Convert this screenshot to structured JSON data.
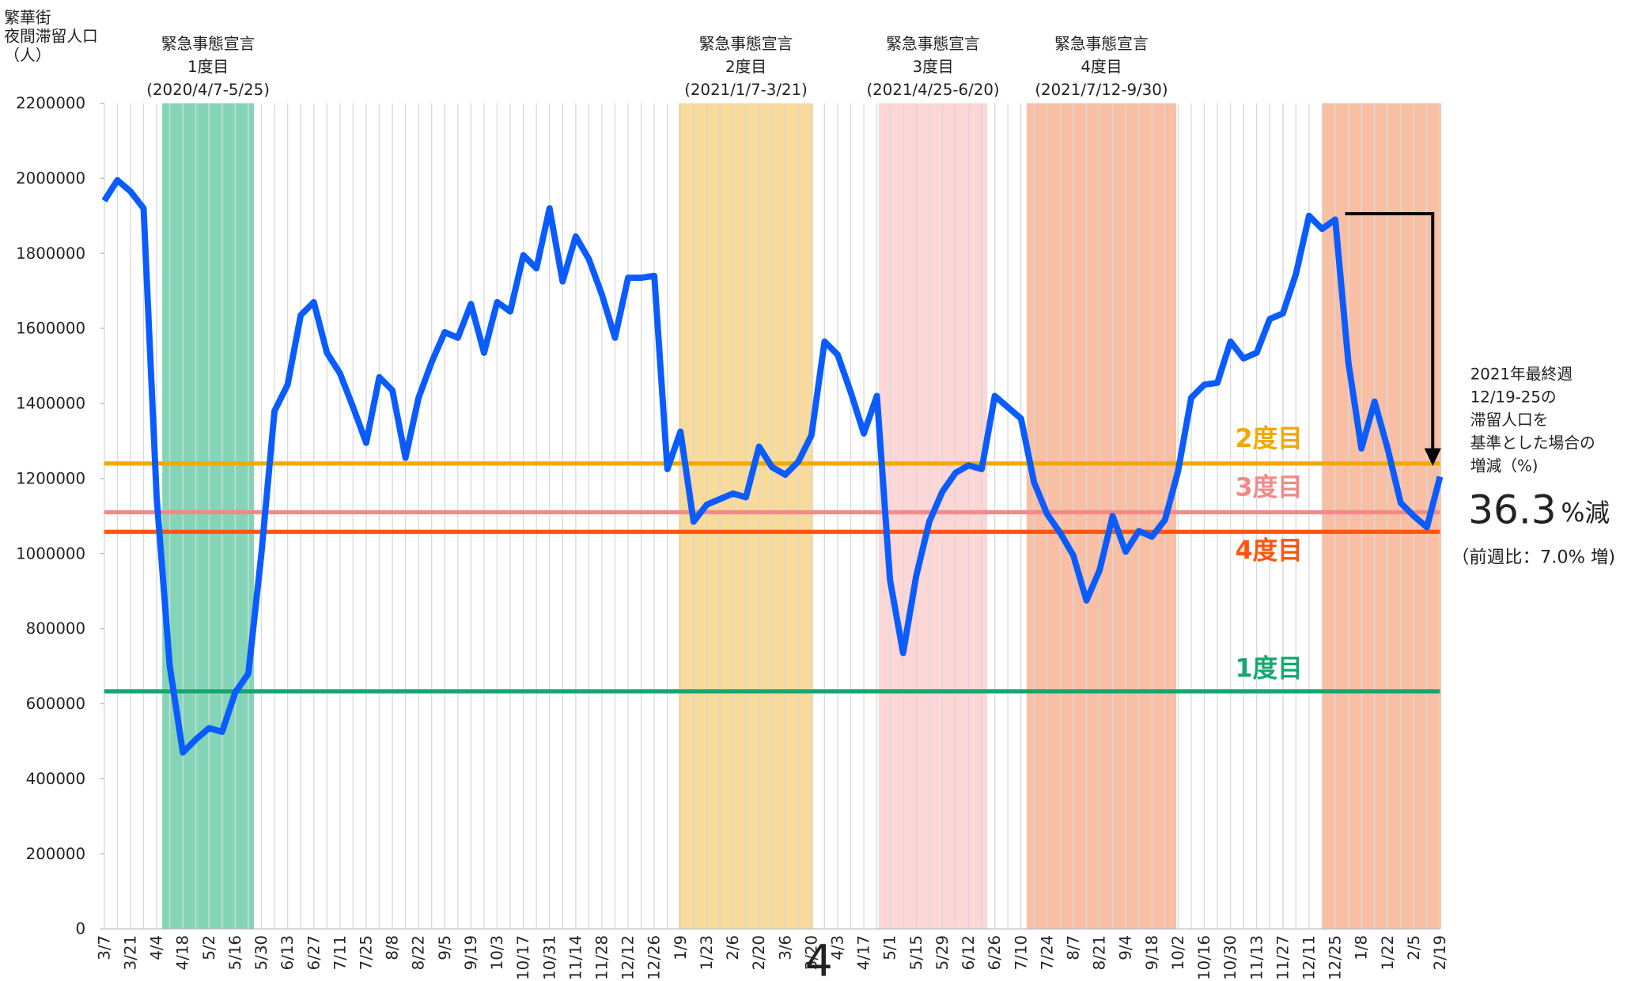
{
  "chart_data": {
    "type": "line",
    "y_axis_label": [
      "繁華街",
      "夜間滞留人口",
      "（人）"
    ],
    "categories": [
      "3/7",
      null,
      "3/21",
      null,
      "4/4",
      null,
      "4/18",
      null,
      "5/2",
      null,
      "5/16",
      null,
      "5/30",
      null,
      "6/13",
      null,
      "6/27",
      null,
      "7/11",
      null,
      "7/25",
      null,
      "8/8",
      null,
      "8/22",
      null,
      "9/5",
      null,
      "9/19",
      null,
      "10/3",
      null,
      "10/17",
      null,
      "10/31",
      null,
      "11/14",
      null,
      "11/28",
      null,
      "12/12",
      null,
      "12/26",
      null,
      "1/9",
      null,
      "1/23",
      null,
      "2/6",
      null,
      "2/20",
      null,
      "3/6",
      null,
      "3/20",
      null,
      "4/3",
      null,
      "4/17",
      null,
      "5/1",
      null,
      "5/15",
      null,
      "5/29",
      null,
      "6/12",
      null,
      "6/26",
      null,
      "7/10",
      null,
      "7/24",
      null,
      "8/7",
      null,
      "8/21",
      null,
      "9/4",
      null,
      "9/18",
      null,
      "10/2",
      null,
      "10/16",
      null,
      "10/30",
      null,
      "11/13",
      null,
      "11/27",
      null,
      "12/11",
      null,
      "12/25",
      null,
      "1/8",
      null,
      "1/22",
      null,
      "2/5",
      null,
      "2/19"
    ],
    "series": [
      {
        "color": "#0a5cff",
        "values": [
          1940000,
          1995000,
          1965000,
          1920000,
          1150000,
          700000,
          470000,
          505000,
          535000,
          525000,
          630000,
          680000,
          1000000,
          1380000,
          1450000,
          1635000,
          1670000,
          1535000,
          1480000,
          1390000,
          1295000,
          1470000,
          1435000,
          1255000,
          1415000,
          1510000,
          1590000,
          1575000,
          1665000,
          1535000,
          1670000,
          1645000,
          1795000,
          1760000,
          1920000,
          1725000,
          1845000,
          1785000,
          1690000,
          1575000,
          1735000,
          1735000,
          1740000,
          1225000,
          1325000,
          1085000,
          1130000,
          1145000,
          1160000,
          1150000,
          1285000,
          1230000,
          1210000,
          1245000,
          1315000,
          1565000,
          1530000,
          1430000,
          1320000,
          1420000,
          930000,
          735000,
          940000,
          1085000,
          1165000,
          1215000,
          1235000,
          1225000,
          1420000,
          1390000,
          1360000,
          1190000,
          1105000,
          1055000,
          995000,
          875000,
          955000,
          1100000,
          1005000,
          1060000,
          1045000,
          1090000,
          1220000,
          1415000,
          1450000,
          1455000,
          1565000,
          1520000,
          1535000,
          1625000,
          1640000,
          1745000,
          1900000,
          1865000,
          1890000,
          1510000,
          1280000,
          1405000,
          1280000,
          1135000,
          1100000,
          1070000,
          1205000
        ]
      }
    ],
    "ylim": [
      0,
      2200000
    ],
    "yticks": [
      0,
      200000,
      400000,
      600000,
      800000,
      1000000,
      1200000,
      1400000,
      1600000,
      1800000,
      2000000,
      2200000
    ],
    "bands": [
      {
        "label": [
          "緊急事態宣言",
          "1度目",
          "(2020/4/7-5/25)"
        ],
        "span": [
          4.43,
          11.43
        ],
        "color": "#84d5b8"
      },
      {
        "label": [
          "緊急事態宣言",
          "2度目",
          "(2021/1/7-3/21)"
        ],
        "span": [
          43.86,
          54.14
        ],
        "color": "#f8da9b"
      },
      {
        "label": [
          "緊急事態宣言",
          "3度目",
          "(2021/4/25-6/20)"
        ],
        "span": [
          59.14,
          67.43
        ],
        "color": "#fdd6d6"
      },
      {
        "label": [
          "緊急事態宣言",
          "4度目",
          "(2021/7/12-9/30)"
        ],
        "span": [
          70.43,
          81.86
        ],
        "color": "#f8bfa4"
      },
      {
        "label": null,
        "span": [
          93.0,
          102.1
        ],
        "color": "#f8bfa4"
      }
    ],
    "reference_lines": [
      {
        "label": "2度目",
        "value": 1240000,
        "color": "#f2a900"
      },
      {
        "label": "3度目",
        "value": 1110000,
        "color": "#f28a8a"
      },
      {
        "label": "4度目",
        "value": 1058000,
        "color": "#ff5511"
      },
      {
        "label": "1度目",
        "value": 633000,
        "color": "#14a86e"
      }
    ],
    "annotation": {
      "lines": [
        "2021年最終週",
        "12/19-25の",
        "滞留人口を",
        "基準とした場合の",
        "増減（%)"
      ],
      "big": "36.3",
      "big_unit": "%減",
      "note": "（前週比：7.0% 増)"
    },
    "stray_text": "4"
  }
}
